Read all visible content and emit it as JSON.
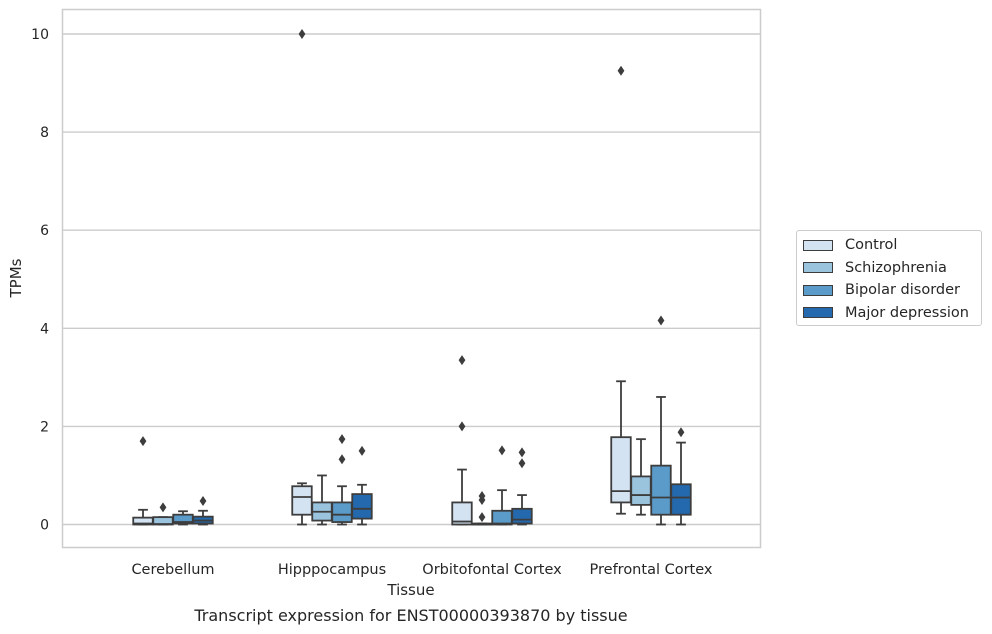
{
  "chart_data": {
    "type": "boxplot",
    "caption": "Transcript expression for ENST00000393870 by tissue",
    "xlabel": "Tissue",
    "ylabel": "TPMs",
    "ylim": [
      -0.45,
      10.5
    ],
    "yticks": [
      0,
      2,
      4,
      6,
      8,
      10
    ],
    "grid": "horizontal",
    "legend_position": "right",
    "categories": [
      "Cerebellum",
      "Hipppocampus",
      "Orbitofontal Cortex",
      "Prefrontal Cortex"
    ],
    "series": [
      {
        "name": "Control",
        "color": "#d4e3f2",
        "boxes": [
          {
            "whislo": 0,
            "q1": 0,
            "med": 0.02,
            "q3": 0.14,
            "whishi": 0.3,
            "fliers": [
              1.7
            ]
          },
          {
            "whislo": 0,
            "q1": 0.2,
            "med": 0.56,
            "q3": 0.78,
            "whishi": 0.84,
            "fliers": [
              10
            ]
          },
          {
            "whislo": 0,
            "q1": 0,
            "med": 0.06,
            "q3": 0.45,
            "whishi": 1.12,
            "fliers": [
              2.0,
              3.35
            ]
          },
          {
            "whislo": 0.22,
            "q1": 0.45,
            "med": 0.68,
            "q3": 1.78,
            "whishi": 2.92,
            "fliers": [
              9.25
            ]
          }
        ]
      },
      {
        "name": "Schizophrenia",
        "color": "#9ac3de",
        "boxes": [
          {
            "whislo": 0,
            "q1": 0,
            "med": 0.01,
            "q3": 0.15,
            "whishi": 0.15,
            "fliers": [
              0.35
            ]
          },
          {
            "whislo": 0,
            "q1": 0.08,
            "med": 0.26,
            "q3": 0.45,
            "whishi": 1.0,
            "fliers": []
          },
          {
            "whislo": 0,
            "q1": 0,
            "med": 0.0,
            "q3": 0.02,
            "whishi": 0.02,
            "fliers": [
              0.15,
              0.5,
              0.58
            ]
          },
          {
            "whislo": 0.2,
            "q1": 0.4,
            "med": 0.6,
            "q3": 0.98,
            "whishi": 1.74,
            "fliers": []
          }
        ]
      },
      {
        "name": "Bipolar disorder",
        "color": "#5a9bc9",
        "boxes": [
          {
            "whislo": 0,
            "q1": 0.02,
            "med": 0.05,
            "q3": 0.2,
            "whishi": 0.27,
            "fliers": []
          },
          {
            "whislo": 0,
            "q1": 0.05,
            "med": 0.2,
            "q3": 0.45,
            "whishi": 0.78,
            "fliers": [
              1.33,
              1.74
            ]
          },
          {
            "whislo": 0,
            "q1": 0,
            "med": 0.02,
            "q3": 0.28,
            "whishi": 0.7,
            "fliers": [
              1.51
            ]
          },
          {
            "whislo": 0,
            "q1": 0.2,
            "med": 0.55,
            "q3": 1.2,
            "whishi": 2.6,
            "fliers": [
              4.16
            ]
          }
        ]
      },
      {
        "name": "Major depression",
        "color": "#2468ad",
        "boxes": [
          {
            "whislo": 0,
            "q1": 0.02,
            "med": 0.08,
            "q3": 0.16,
            "whishi": 0.28,
            "fliers": [
              0.48
            ]
          },
          {
            "whislo": 0,
            "q1": 0.12,
            "med": 0.32,
            "q3": 0.62,
            "whishi": 0.81,
            "fliers": [
              1.5
            ]
          },
          {
            "whislo": 0,
            "q1": 0.02,
            "med": 0.1,
            "q3": 0.32,
            "whishi": 0.6,
            "fliers": [
              1.25,
              1.47
            ]
          },
          {
            "whislo": 0,
            "q1": 0.2,
            "med": 0.55,
            "q3": 0.82,
            "whishi": 1.67,
            "fliers": [
              1.88
            ]
          }
        ]
      }
    ]
  }
}
